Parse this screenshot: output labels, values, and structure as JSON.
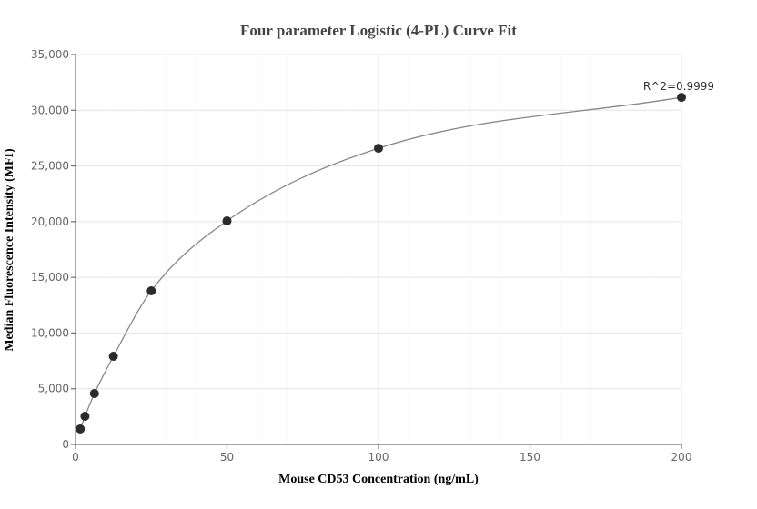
{
  "chart_data": {
    "type": "scatter",
    "title": "Four parameter Logistic (4-PL) Curve Fit",
    "xlabel": "Mouse CD53 Concentration (ng/mL)",
    "ylabel": "Median Fluorescence Intensity (MFI)",
    "xlim": [
      0,
      200
    ],
    "ylim": [
      0,
      35000
    ],
    "x_ticks": [
      0,
      50,
      100,
      150,
      200
    ],
    "x_tick_labels": [
      "0",
      "50",
      "100",
      "150",
      "200"
    ],
    "x_minor_step": 10,
    "y_ticks": [
      0,
      5000,
      10000,
      15000,
      20000,
      25000,
      30000,
      35000
    ],
    "y_tick_labels": [
      "0",
      "5,000",
      "10,000",
      "15,000",
      "20,000",
      "25,000",
      "30,000",
      "35,000"
    ],
    "grid": true,
    "legend": null,
    "series": [
      {
        "name": "Standards",
        "marker": "circle",
        "color": "#2b2b2b",
        "x": [
          1.5625,
          3.125,
          6.25,
          12.5,
          25,
          50,
          100,
          200
        ],
        "y": [
          1390,
          2530,
          4570,
          7910,
          13790,
          20070,
          26590,
          31160
        ]
      },
      {
        "name": "4-PL fit",
        "type": "line",
        "color": "#888888",
        "fit": {
          "model": "4PL",
          "r_squared": 0.9999
        }
      }
    ],
    "annotations": [
      {
        "text": "R^2=0.9999",
        "x": 200,
        "y": 31160,
        "position": "above-left"
      }
    ]
  }
}
